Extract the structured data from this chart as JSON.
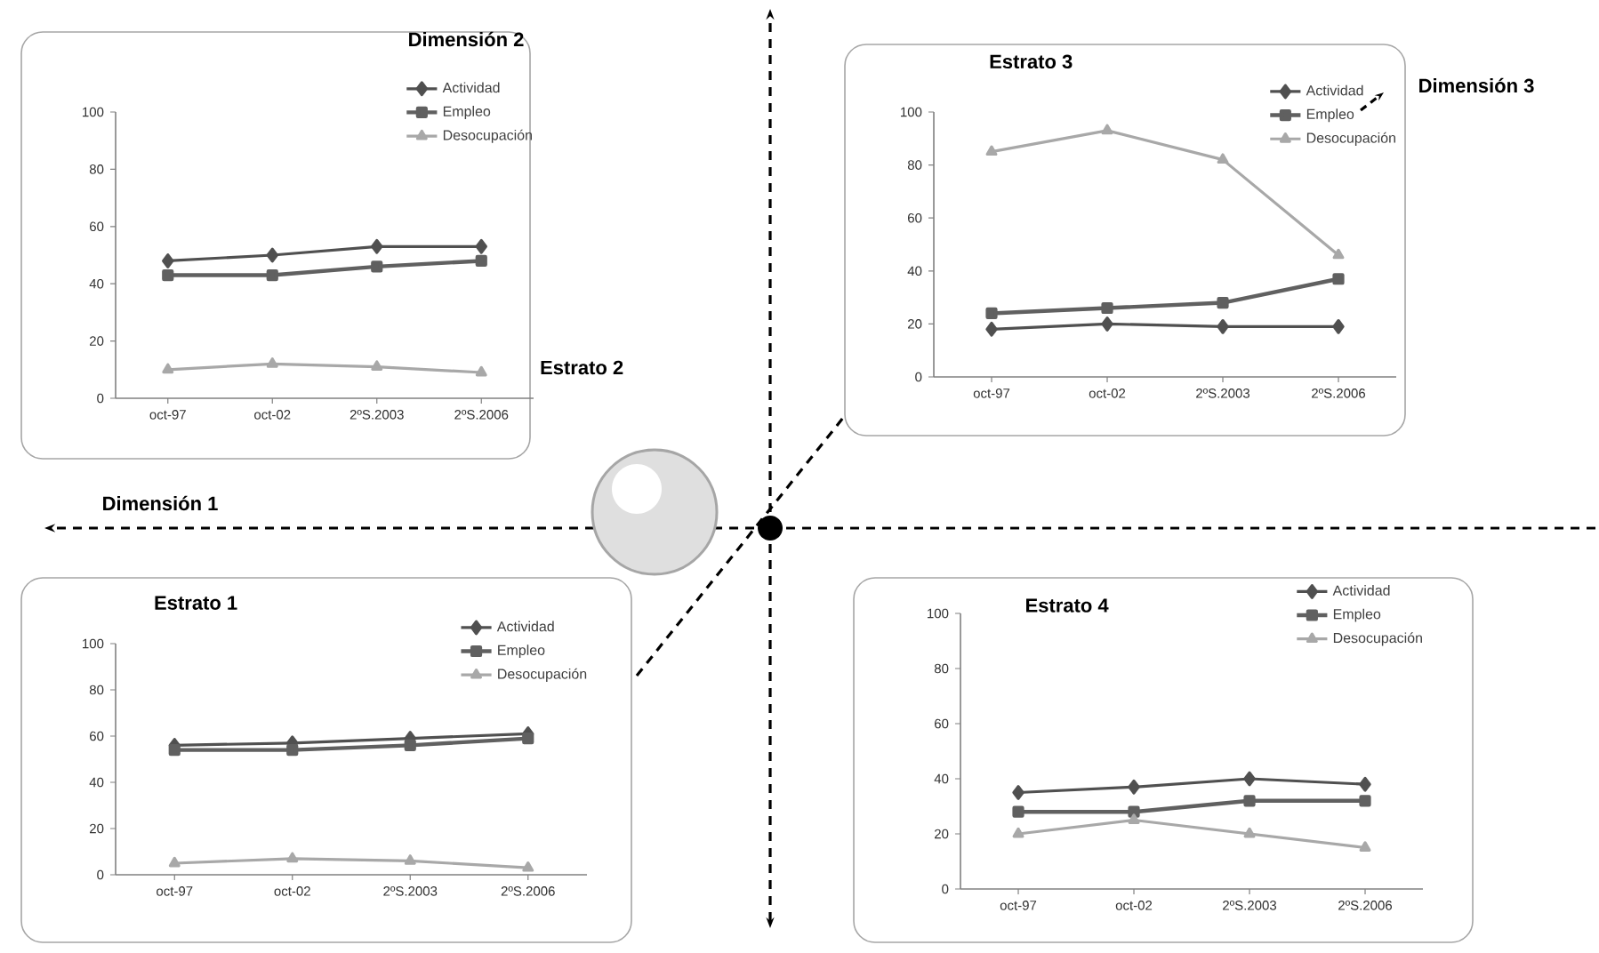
{
  "chart_data": [
    {
      "type": "line",
      "title": "Estrato 2",
      "categories": [
        "oct-97",
        "oct-02",
        "2ºS.2003",
        "2ºS.2006"
      ],
      "ylim": [
        0,
        100
      ],
      "yticks": [
        0,
        20,
        40,
        60,
        80,
        100
      ],
      "legend": "top right",
      "annotations": [
        "Dimensión 1",
        "Dimensión 2"
      ],
      "series": [
        {
          "name": "Actividad",
          "color": "#505050",
          "marker": "diamond",
          "values": [
            48,
            50,
            53,
            53
          ]
        },
        {
          "name": "Empleo",
          "color": "#606060",
          "marker": "square",
          "values": [
            43,
            43,
            46,
            48
          ]
        },
        {
          "name": "Desocupación",
          "color": "#a8a8a8",
          "marker": "triangle",
          "values": [
            10,
            12,
            11,
            9
          ]
        }
      ]
    },
    {
      "type": "line",
      "title": "Estrato 3",
      "categories": [
        "oct-97",
        "oct-02",
        "2ºS.2003",
        "2ºS.2006"
      ],
      "ylim": [
        0,
        100
      ],
      "yticks": [
        0,
        20,
        40,
        60,
        80,
        100
      ],
      "legend": "top right",
      "annotations": [
        "Dimensión 3"
      ],
      "series": [
        {
          "name": "Actividad",
          "color": "#505050",
          "marker": "diamond",
          "values": [
            18,
            20,
            19,
            19
          ]
        },
        {
          "name": "Empleo",
          "color": "#606060",
          "marker": "square",
          "values": [
            24,
            26,
            28,
            37
          ]
        },
        {
          "name": "Desocupación",
          "color": "#a8a8a8",
          "marker": "triangle",
          "values": [
            85,
            93,
            82,
            46
          ]
        }
      ]
    },
    {
      "type": "line",
      "title": "Estrato 1",
      "categories": [
        "oct-97",
        "oct-02",
        "2ºS.2003",
        "2ºS.2006"
      ],
      "ylim": [
        0,
        100
      ],
      "yticks": [
        0,
        20,
        40,
        60,
        80,
        100
      ],
      "legend": "top right",
      "series": [
        {
          "name": "Actividad",
          "color": "#505050",
          "marker": "diamond",
          "values": [
            56,
            57,
            59,
            61
          ]
        },
        {
          "name": "Empleo",
          "color": "#606060",
          "marker": "square",
          "values": [
            54,
            54,
            56,
            59
          ]
        },
        {
          "name": "Desocupación",
          "color": "#a8a8a8",
          "marker": "triangle",
          "values": [
            5,
            7,
            6,
            3
          ]
        }
      ]
    },
    {
      "type": "line",
      "title": "Estrato 4",
      "categories": [
        "oct-97",
        "oct-02",
        "2ºS.2003",
        "2ºS.2006"
      ],
      "ylim": [
        0,
        100
      ],
      "yticks": [
        0,
        20,
        40,
        60,
        80,
        100
      ],
      "legend": "top right",
      "series": [
        {
          "name": "Actividad",
          "color": "#505050",
          "marker": "diamond",
          "values": [
            35,
            37,
            40,
            38
          ]
        },
        {
          "name": "Empleo",
          "color": "#606060",
          "marker": "square",
          "values": [
            28,
            28,
            32,
            32
          ]
        },
        {
          "name": "Desocupación",
          "color": "#a8a8a8",
          "marker": "triangle",
          "values": [
            20,
            25,
            20,
            15
          ]
        }
      ]
    }
  ]
}
